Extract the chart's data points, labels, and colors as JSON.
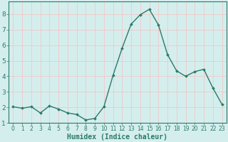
{
  "x": [
    0,
    1,
    2,
    3,
    4,
    5,
    6,
    7,
    8,
    9,
    10,
    11,
    12,
    13,
    14,
    15,
    16,
    17,
    18,
    19,
    20,
    21,
    22,
    23
  ],
  "y": [
    2.05,
    1.95,
    2.05,
    1.65,
    2.1,
    1.9,
    1.65,
    1.55,
    1.2,
    1.3,
    2.05,
    4.05,
    5.8,
    7.35,
    7.95,
    8.3,
    7.3,
    5.4,
    4.35,
    4.0,
    4.3,
    4.45,
    3.25,
    2.2
  ],
  "line_color": "#2a7a6a",
  "marker": "D",
  "marker_size": 2.0,
  "line_width": 1.0,
  "bg_color": "#d4eeed",
  "grid_color": "#f0c8c8",
  "xlabel": "Humidex (Indice chaleur)",
  "xlabel_fontsize": 7,
  "ylim": [
    1.0,
    8.8
  ],
  "xlim": [
    -0.5,
    23.5
  ],
  "yticks": [
    1,
    2,
    3,
    4,
    5,
    6,
    7,
    8
  ],
  "xticks": [
    0,
    1,
    2,
    3,
    4,
    5,
    6,
    7,
    8,
    9,
    10,
    11,
    12,
    13,
    14,
    15,
    16,
    17,
    18,
    19,
    20,
    21,
    22,
    23
  ],
  "tick_fontsize": 5.5,
  "ytick_fontsize": 6.5
}
